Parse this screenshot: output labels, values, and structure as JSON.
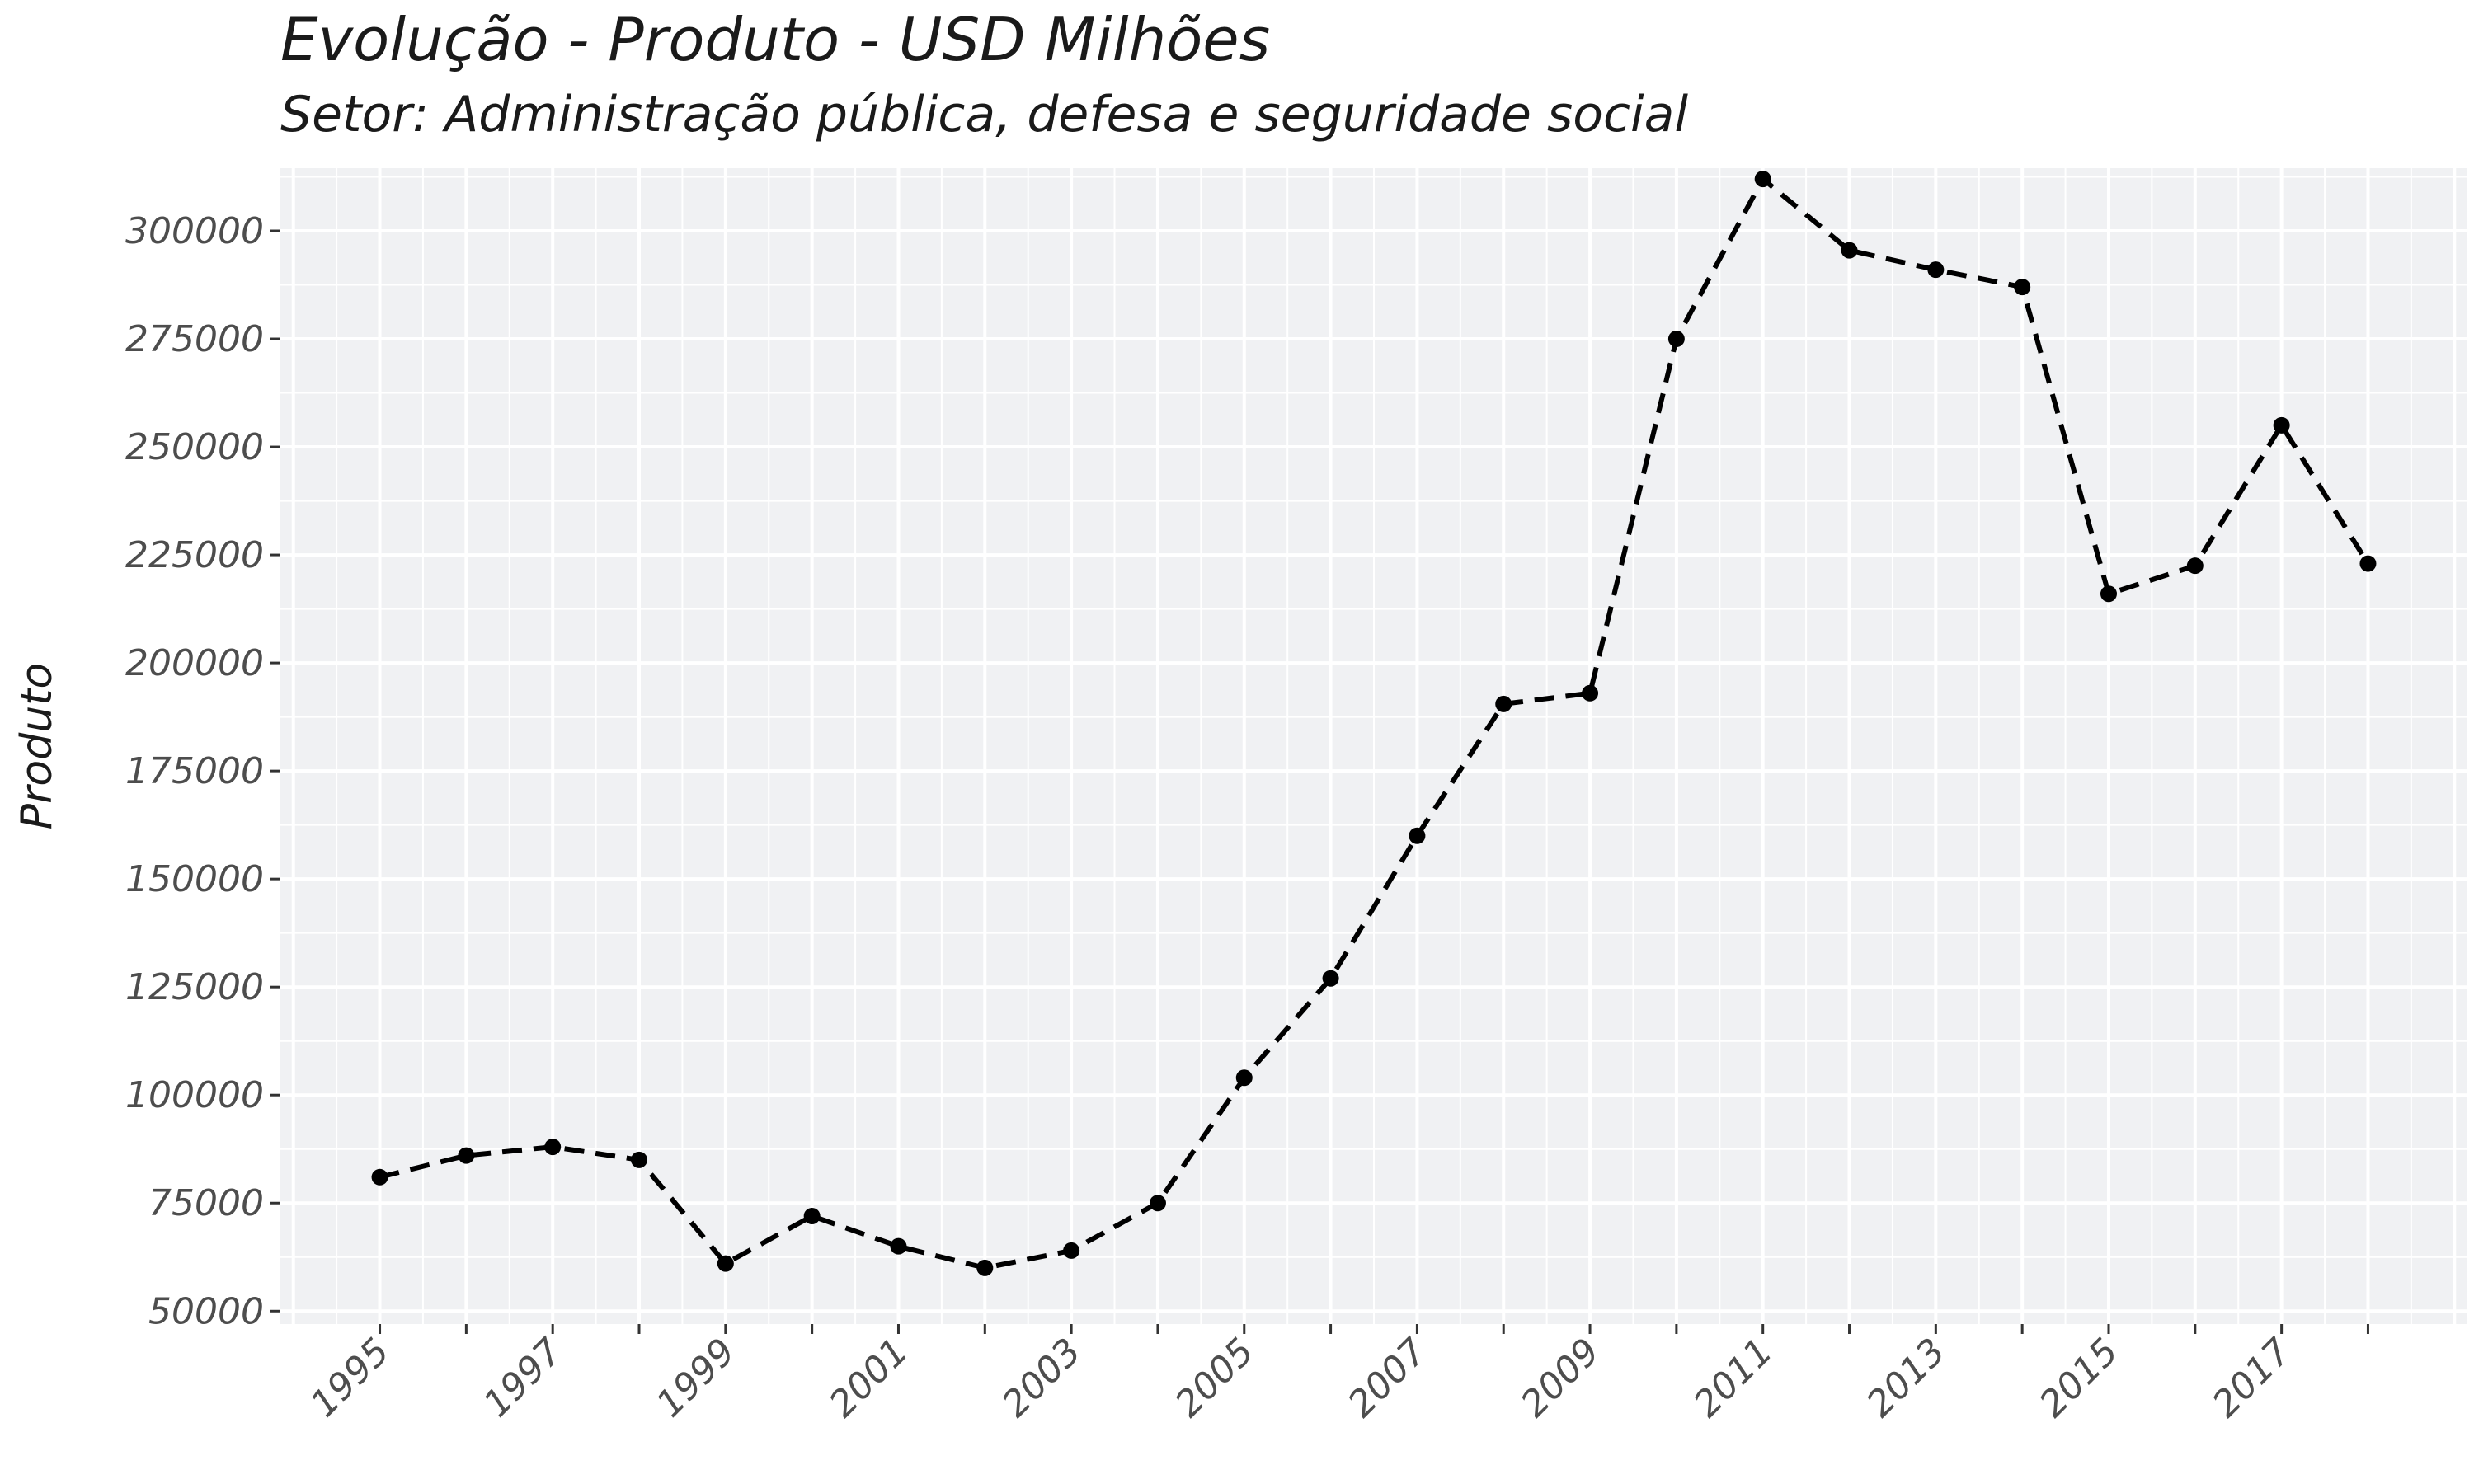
{
  "header": {
    "title": "Evolução - Produto - USD Milhões",
    "subtitle": "Setor: Administração pública, defesa e seguridade social"
  },
  "chart_data": {
    "type": "line",
    "title": "Evolução - Produto - USD Milhões",
    "subtitle": "Setor: Administração pública, defesa e seguridade social",
    "xlabel": "",
    "ylabel": "Produto",
    "x": [
      1995,
      1996,
      1997,
      1998,
      1999,
      2000,
      2001,
      2002,
      2003,
      2004,
      2005,
      2006,
      2007,
      2008,
      2009,
      2010,
      2011,
      2012,
      2013,
      2014,
      2015,
      2016,
      2017,
      2018
    ],
    "series": [
      {
        "values": [
          81000,
          86000,
          88000,
          85000,
          61000,
          72000,
          65000,
          60000,
          64000,
          75000,
          104000,
          127000,
          160000,
          190500,
          193000,
          275000,
          312000,
          295500,
          291000,
          287000,
          216000,
          222500,
          255000,
          223000
        ],
        "color": "#000000",
        "line_style": "dashed",
        "markers": true
      }
    ],
    "x_ticks": [
      "1995",
      "1997",
      "1999",
      "2001",
      "2003",
      "2005",
      "2007",
      "2009",
      "2011",
      "2013",
      "2015",
      "2017"
    ],
    "y_ticks": [
      "50000",
      "75000",
      "100000",
      "125000",
      "150000",
      "175000",
      "200000",
      "225000",
      "250000",
      "275000",
      "300000"
    ],
    "xlim": [
      1993.85,
      2019.15
    ],
    "ylim": [
      47000,
      314500
    ],
    "grid": true,
    "legend": "none",
    "panel_color": "#f0f1f3",
    "grid_color": "#ffffff"
  }
}
